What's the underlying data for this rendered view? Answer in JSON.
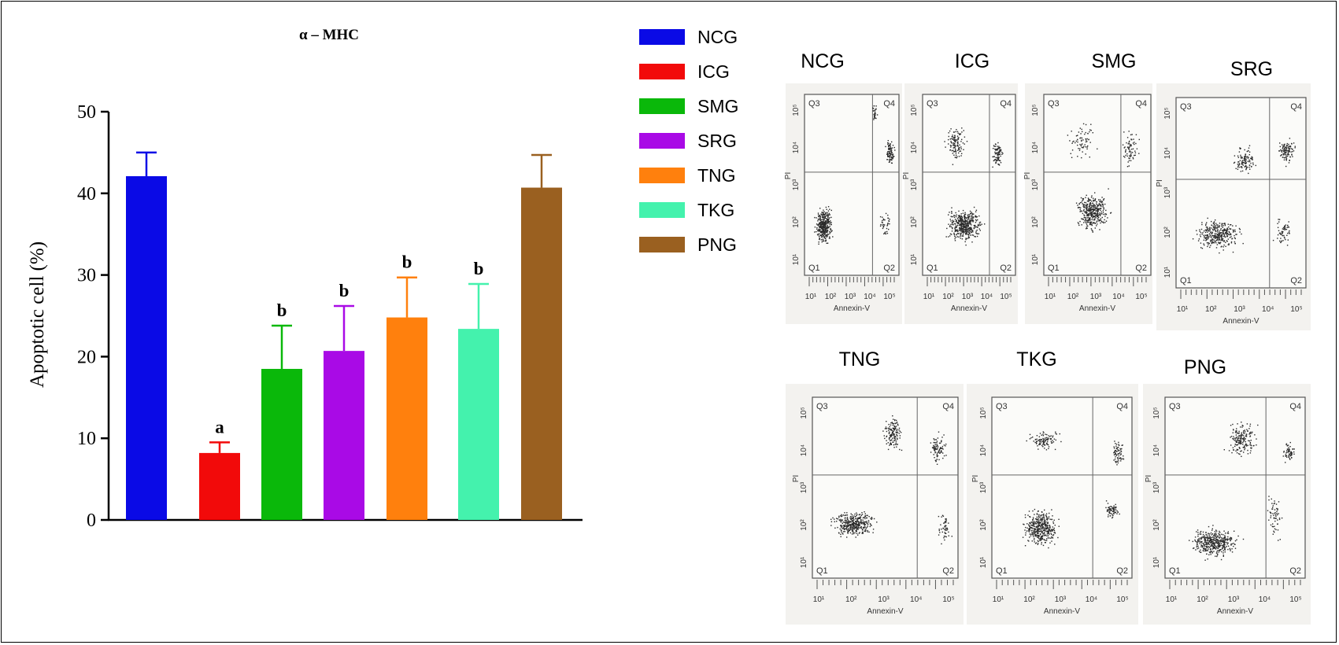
{
  "chart_data": {
    "type": "bar",
    "title": "α – MHC",
    "ylabel": "Apoptotic cell (%)",
    "xlabel": "",
    "ylim": [
      0,
      50
    ],
    "yticks": [
      0,
      10,
      20,
      30,
      40,
      50
    ],
    "categories": [
      "NCG",
      "ICG",
      "SMG",
      "SRG",
      "TNG",
      "TKG",
      "PNG"
    ],
    "values": [
      42.1,
      8.2,
      18.5,
      20.7,
      24.8,
      23.4,
      40.7
    ],
    "errors": [
      2.9,
      1.3,
      5.3,
      5.5,
      4.9,
      5.5,
      4.0
    ],
    "significance": [
      "",
      "a",
      "b",
      "b",
      "b",
      "b",
      ""
    ],
    "colors": [
      "#0a0ae6",
      "#f20a0a",
      "#0ab80a",
      "#a90ae6",
      "#ff800d",
      "#44f2ad",
      "#9a6020"
    ],
    "legend": [
      "NCG",
      "ICG",
      "SMG",
      "SRG",
      "TNG",
      "TKG",
      "PNG"
    ],
    "legend_position": "right",
    "grid": false
  },
  "flow_panels": {
    "top_row": [
      "NCG",
      "ICG",
      "SMG",
      "SRG"
    ],
    "bottom_row": [
      "TNG",
      "TKG",
      "PNG"
    ],
    "quadrants": [
      "Q1",
      "Q2",
      "Q3",
      "Q4"
    ],
    "x_axis_label": "Annexin-V",
    "y_axis_label": "PI",
    "x_ticks": [
      "10¹",
      "10²",
      "10³",
      "10⁴",
      "10⁵"
    ],
    "y_ticks": [
      "10¹",
      "10²",
      "10³",
      "10⁴",
      "10⁵"
    ]
  }
}
